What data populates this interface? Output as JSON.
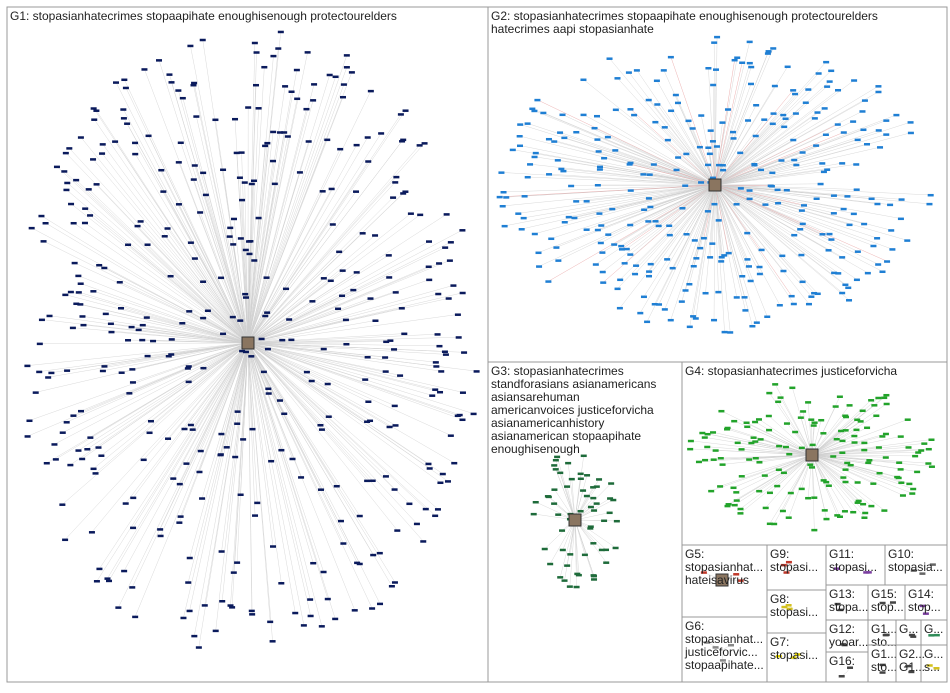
{
  "groups": [
    {
      "lines": [
        "G1: stopasianhatecrimes stopaapihate enoughisenough protectourelders"
      ],
      "color": "#0a1a5c"
    },
    {
      "lines": [
        "G2: stopasianhatecrimes stopaapihate enoughisenough protectourelders",
        "hatecrimes aapi stopasianhate"
      ],
      "color": "#1f7fd4"
    },
    {
      "lines": [
        "G3: stopasianhatecrimes",
        "standforasians asianamericans",
        "asiansarehuman",
        "americanvoices justiceforvicha",
        "asianamericanhistory",
        "asianamerican stopaapihate",
        "enoughisenough"
      ],
      "color": "#1e6b3a"
    },
    {
      "lines": [
        "G4: stopasianhatecrimes justiceforvicha"
      ],
      "color": "#22a32a"
    },
    {
      "lines": [
        "G5:",
        "stopasianhat...",
        "hateisavirus"
      ],
      "color": "#c0392b"
    },
    {
      "lines": [
        "G6:",
        "stopasianhat...",
        "justiceforvic...",
        "stopaapihate..."
      ],
      "color": "#888888"
    },
    {
      "lines": [
        "G9:",
        "stopasi..."
      ],
      "color": "#c0392b"
    },
    {
      "lines": [
        "G8:",
        "stopasi..."
      ],
      "color": "#d4c11e"
    },
    {
      "lines": [
        "G7:",
        "stopasi..."
      ],
      "color": "#e6d800"
    },
    {
      "lines": [
        "G11:",
        "stopasi..."
      ],
      "color": "#7b3fa0"
    },
    {
      "lines": [
        "G10:",
        "stopasia..."
      ],
      "color": "#666666"
    },
    {
      "lines": [
        "G13:",
        "stopa..."
      ],
      "color": "#444444"
    },
    {
      "lines": [
        "G15:",
        "stop..."
      ],
      "color": "#444444"
    },
    {
      "lines": [
        "G14:",
        "stop..."
      ],
      "color": "#7b3fa0"
    },
    {
      "lines": [
        "G12:",
        "yooar..."
      ],
      "color": "#444444"
    },
    {
      "lines": [
        "G1...",
        "sto..."
      ],
      "color": "#444444"
    },
    {
      "lines": [
        "G..."
      ],
      "color": "#444444"
    },
    {
      "lines": [
        "G..."
      ],
      "color": "#2e8b57"
    },
    {
      "lines": [
        "G16:"
      ],
      "color": "#444444"
    },
    {
      "lines": [
        "G1...",
        "sto..."
      ],
      "color": "#444444"
    },
    {
      "lines": [
        "G2...",
        "G1..."
      ],
      "color": "#444444"
    },
    {
      "lines": [
        "G...",
        "s..."
      ],
      "color": "#d4c11e"
    }
  ]
}
